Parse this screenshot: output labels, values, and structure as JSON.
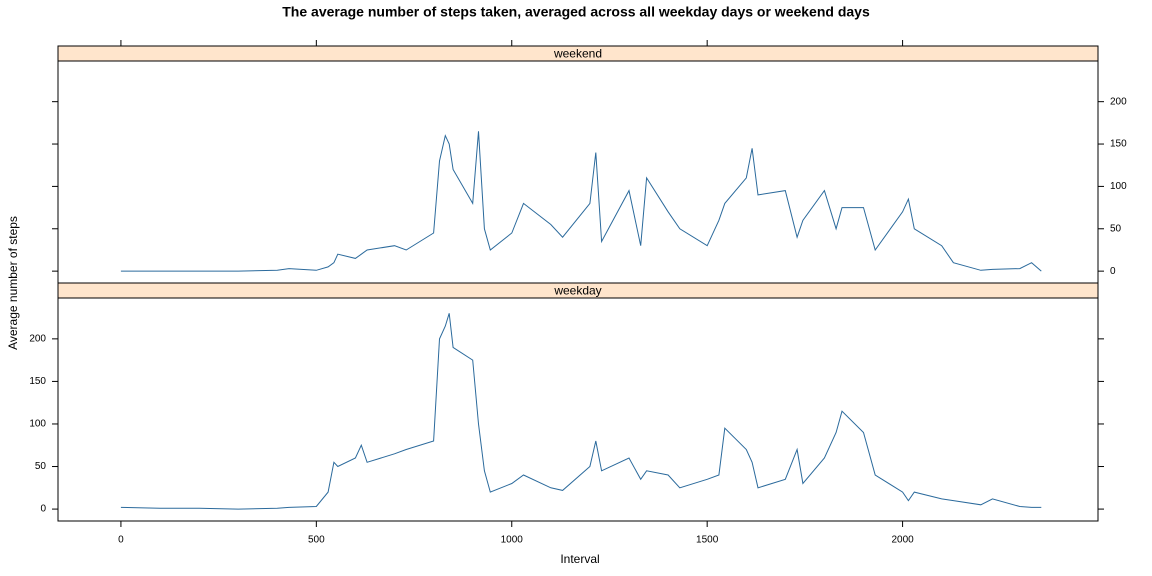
{
  "chart_data": {
    "type": "line",
    "title": "The average number of steps taken, averaged across all weekday days or weekend days",
    "xlabel": "Interval",
    "ylabel": "Average number of steps",
    "strip_color": "#ffe5cc",
    "x": [
      0,
      100,
      200,
      300,
      400,
      430,
      500,
      530,
      545,
      555,
      600,
      615,
      630,
      700,
      730,
      800,
      815,
      830,
      840,
      850,
      900,
      915,
      930,
      945,
      1000,
      1030,
      1100,
      1130,
      1200,
      1215,
      1230,
      1300,
      1330,
      1345,
      1400,
      1430,
      1500,
      1530,
      1545,
      1600,
      1615,
      1630,
      1700,
      1730,
      1745,
      1800,
      1830,
      1845,
      1900,
      1930,
      2000,
      2015,
      2030,
      2100,
      2130,
      2200,
      2230,
      2300,
      2330,
      2355
    ],
    "series": [
      {
        "name": "weekend",
        "color": "#2b6a9c",
        "values": [
          0,
          0,
          0,
          0,
          1,
          3,
          1,
          5,
          10,
          20,
          15,
          20,
          25,
          30,
          25,
          45,
          130,
          160,
          150,
          120,
          80,
          165,
          50,
          25,
          45,
          80,
          55,
          40,
          80,
          140,
          35,
          95,
          30,
          110,
          70,
          50,
          30,
          60,
          80,
          110,
          145,
          90,
          95,
          40,
          60,
          95,
          50,
          75,
          75,
          25,
          70,
          85,
          50,
          30,
          10,
          1,
          2,
          3,
          10,
          0
        ]
      },
      {
        "name": "weekday",
        "color": "#2b6a9c",
        "values": [
          2,
          1,
          1,
          0,
          1,
          2,
          3,
          20,
          55,
          50,
          60,
          75,
          55,
          65,
          70,
          80,
          200,
          215,
          230,
          190,
          175,
          100,
          45,
          20,
          30,
          40,
          25,
          22,
          50,
          80,
          45,
          60,
          35,
          45,
          40,
          25,
          35,
          40,
          95,
          70,
          55,
          25,
          35,
          70,
          30,
          60,
          90,
          115,
          90,
          40,
          20,
          10,
          20,
          12,
          10,
          5,
          12,
          3,
          2,
          2
        ]
      }
    ],
    "xlim": [
      -161,
      2500
    ],
    "xticks": [
      0,
      500,
      1000,
      1500,
      2000
    ],
    "ylim": [
      -14,
      248
    ],
    "yticks": [
      0,
      50,
      100,
      150,
      200
    ]
  }
}
